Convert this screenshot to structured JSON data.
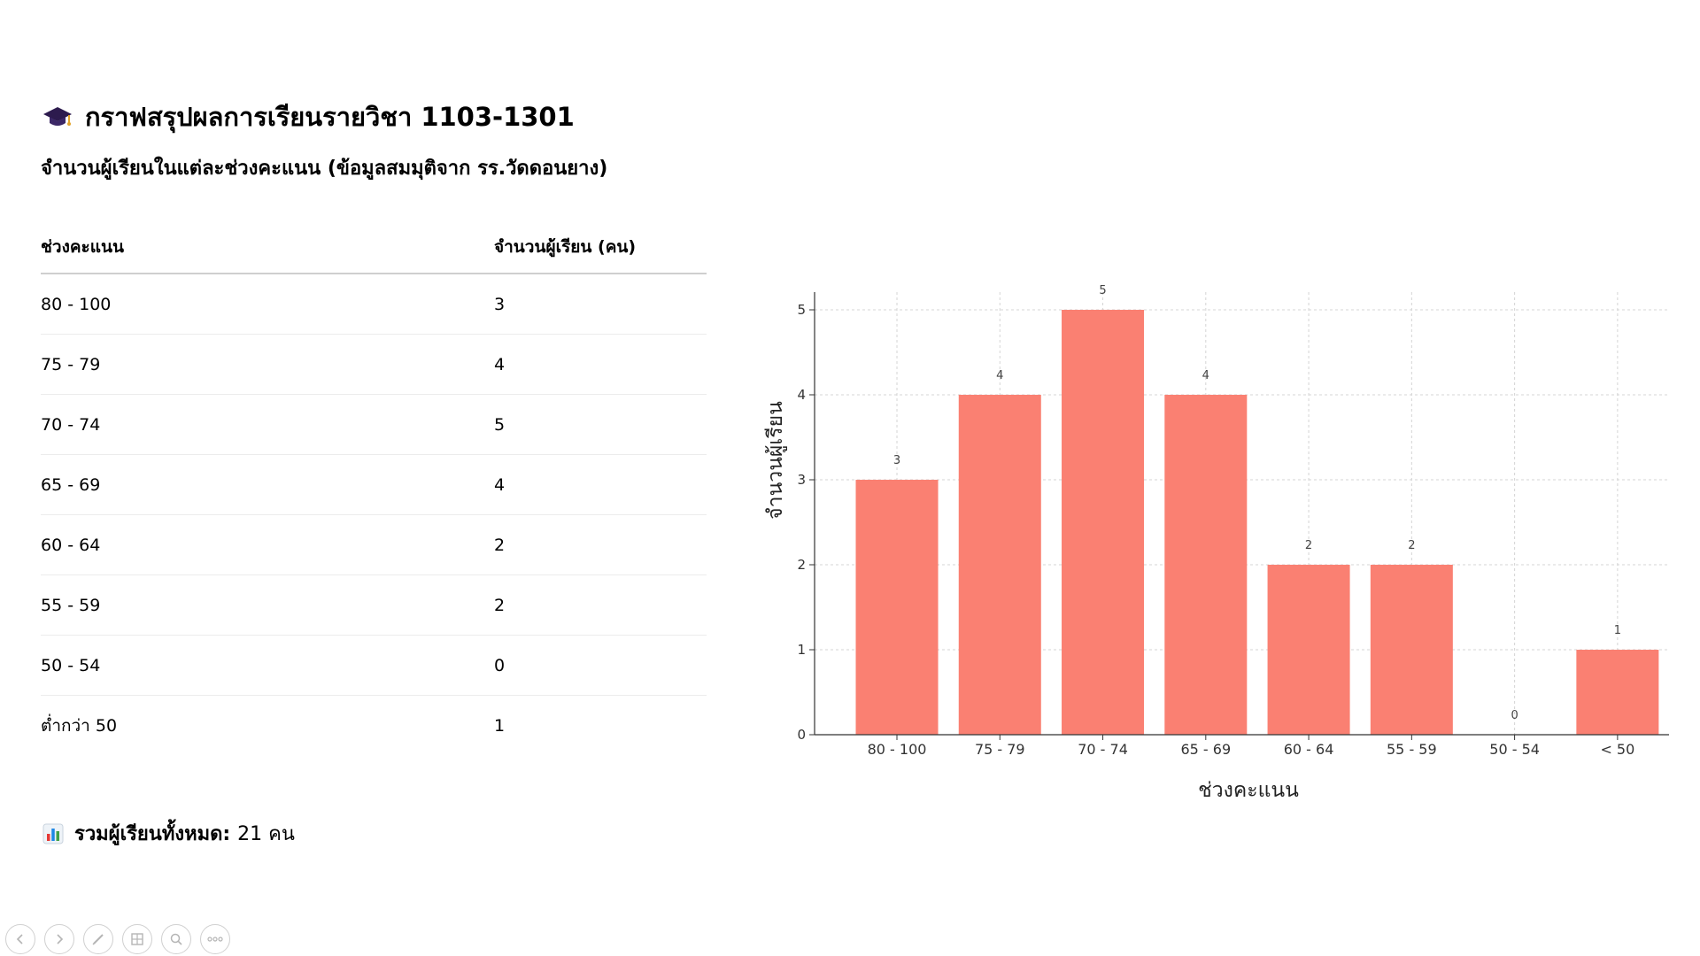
{
  "header": {
    "title": "กราฟสรุปผลการเรียนรายวิชา 1103-1301",
    "subtitle": "จำนวนผู้เรียนในแต่ละช่วงคะแนน (ข้อมูลสมมุติจาก รร.วัดดอนยาง)",
    "icon": "graduation-cap-icon"
  },
  "table": {
    "headers": [
      "ช่วงคะแนน",
      "จำนวนผู้เรียน (คน)"
    ],
    "rows": [
      {
        "range": "80 - 100",
        "count": "3"
      },
      {
        "range": "75 - 79",
        "count": "4"
      },
      {
        "range": "70 - 74",
        "count": "5"
      },
      {
        "range": "65 - 69",
        "count": "4"
      },
      {
        "range": "60 - 64",
        "count": "2"
      },
      {
        "range": "55 - 59",
        "count": "2"
      },
      {
        "range": "50 - 54",
        "count": "0"
      },
      {
        "range": "ต่ำกว่า 50",
        "count": "1"
      }
    ]
  },
  "summary": {
    "icon": "bar-chart-icon",
    "label": "รวมผู้เรียนทั้งหมด:",
    "value": "21 คน"
  },
  "chart_data": {
    "type": "bar",
    "categories": [
      "80 - 100",
      "75 - 79",
      "70 - 74",
      "65 - 69",
      "60 - 64",
      "55 - 59",
      "50 - 54",
      "< 50"
    ],
    "values": [
      3,
      4,
      5,
      4,
      2,
      2,
      0,
      1
    ],
    "title": "",
    "xlabel": "ช่วงคะแนน",
    "ylabel": "จำนวนผู้เรียน",
    "ylim": [
      0,
      5
    ],
    "yticks": [
      0,
      1,
      2,
      3,
      4,
      5
    ],
    "grid": true,
    "data_labels": true,
    "bar_color": "#fa8072"
  },
  "controls": [
    "previous-icon",
    "next-icon",
    "pen-icon",
    "slides-icon",
    "zoom-icon",
    "more-icon"
  ]
}
